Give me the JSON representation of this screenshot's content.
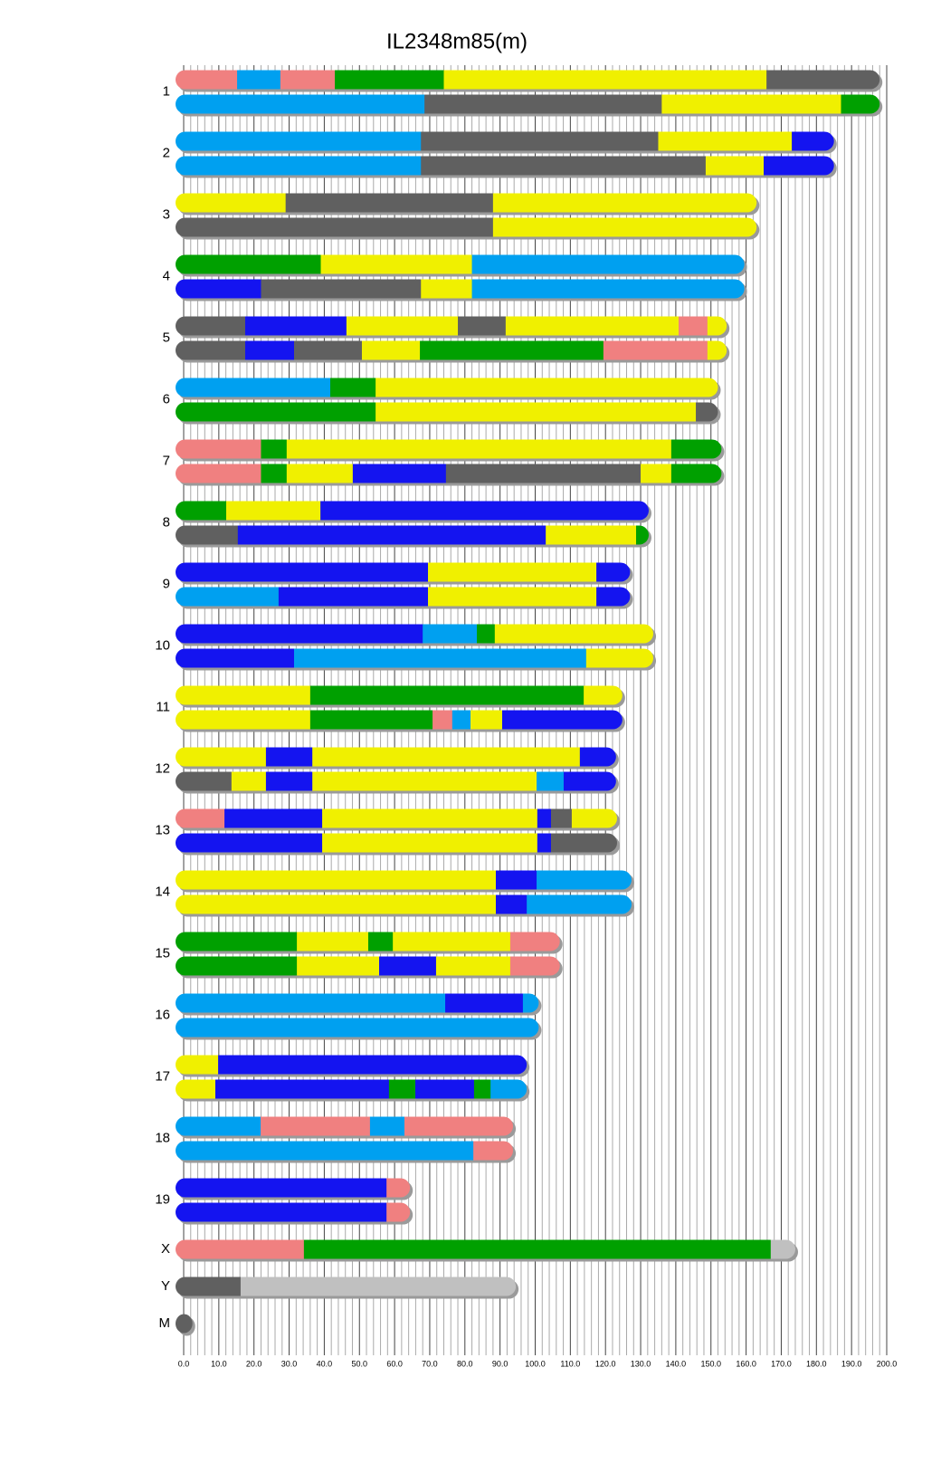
{
  "chart_data": {
    "type": "chromosome-painting",
    "title": "IL2348m85(m)",
    "xlim": [
      0,
      200
    ],
    "xticks": [
      {
        "value": 0,
        "label": "0.0"
      },
      {
        "value": 10,
        "label": "10.0"
      },
      {
        "value": 20,
        "label": "20.0"
      },
      {
        "value": 30,
        "label": "30.0"
      },
      {
        "value": 40,
        "label": "40.0"
      },
      {
        "value": 50,
        "label": "50.0"
      },
      {
        "value": 60,
        "label": "60.0"
      },
      {
        "value": 70,
        "label": "70.0"
      },
      {
        "value": 80,
        "label": "80.0"
      },
      {
        "value": 90,
        "label": "90.0"
      },
      {
        "value": 100,
        "label": "100.0"
      },
      {
        "value": 110,
        "label": "110.0"
      },
      {
        "value": 120,
        "label": "120.0"
      },
      {
        "value": 130,
        "label": "130.0"
      },
      {
        "value": 140,
        "label": "140.0"
      },
      {
        "value": 150,
        "label": "150.0"
      },
      {
        "value": 160,
        "label": "160.0"
      },
      {
        "value": 170,
        "label": "170.0"
      },
      {
        "value": 180,
        "label": "180.0"
      },
      {
        "value": 190,
        "label": "190.0"
      },
      {
        "value": 200,
        "label": "200.0"
      }
    ],
    "grid": true,
    "chromosomes": [
      {
        "name": "1",
        "haplotypes": [
          [
            [
              0,
              15.2,
              "#f08080"
            ],
            [
              15.2,
              27.5,
              "#00a0f0"
            ],
            [
              27.5,
              43,
              "#f08080"
            ],
            [
              43,
              74,
              "#00a000"
            ],
            [
              74,
              165.8,
              "#f0f000"
            ],
            [
              165.8,
              198,
              "#606060"
            ]
          ],
          [
            [
              0,
              68.5,
              "#00a0f0"
            ],
            [
              68.5,
              136,
              "#606060"
            ],
            [
              136,
              187,
              "#f0f000"
            ],
            [
              187,
              198,
              "#00a000"
            ]
          ]
        ]
      },
      {
        "name": "2",
        "haplotypes": [
          [
            [
              0,
              67.5,
              "#00a0f0"
            ],
            [
              67.5,
              135,
              "#606060"
            ],
            [
              135,
              173,
              "#f0f000"
            ],
            [
              173,
              185,
              "#1414f0"
            ]
          ],
          [
            [
              0,
              67.5,
              "#00a0f0"
            ],
            [
              67.5,
              148.5,
              "#606060"
            ],
            [
              148.5,
              165,
              "#f0f000"
            ],
            [
              165,
              185,
              "#1414f0"
            ]
          ]
        ]
      },
      {
        "name": "3",
        "haplotypes": [
          [
            [
              0,
              29,
              "#f0f000"
            ],
            [
              29,
              88,
              "#606060"
            ],
            [
              88,
              163,
              "#f0f000"
            ]
          ],
          [
            [
              0,
              88,
              "#606060"
            ],
            [
              88,
              163,
              "#f0f000"
            ]
          ]
        ]
      },
      {
        "name": "4",
        "haplotypes": [
          [
            [
              0,
              39,
              "#00a000"
            ],
            [
              39,
              82,
              "#f0f000"
            ],
            [
              82,
              159.5,
              "#00a0f0"
            ]
          ],
          [
            [
              0,
              22,
              "#1414f0"
            ],
            [
              22,
              67.5,
              "#606060"
            ],
            [
              67.5,
              82,
              "#f0f000"
            ],
            [
              82,
              159.5,
              "#00a0f0"
            ]
          ]
        ]
      },
      {
        "name": "5",
        "haplotypes": [
          [
            [
              0,
              17.5,
              "#606060"
            ],
            [
              17.5,
              46.3,
              "#1414f0"
            ],
            [
              46.3,
              78,
              "#f0f000"
            ],
            [
              78,
              91.6,
              "#606060"
            ],
            [
              91.6,
              140.8,
              "#f0f000"
            ],
            [
              140.8,
              149,
              "#f08080"
            ],
            [
              149,
              154.5,
              "#f0f000"
            ]
          ],
          [
            [
              0,
              17.5,
              "#606060"
            ],
            [
              17.5,
              31.4,
              "#1414f0"
            ],
            [
              31.4,
              50.7,
              "#606060"
            ],
            [
              50.7,
              67.2,
              "#f0f000"
            ],
            [
              67.2,
              119.4,
              "#00a000"
            ],
            [
              119.4,
              149,
              "#f08080"
            ],
            [
              149,
              154.5,
              "#f0f000"
            ]
          ]
        ]
      },
      {
        "name": "6",
        "haplotypes": [
          [
            [
              0,
              41.7,
              "#00a0f0"
            ],
            [
              41.7,
              54.6,
              "#00a000"
            ],
            [
              54.6,
              152,
              "#f0f000"
            ]
          ],
          [
            [
              0,
              54.6,
              "#00a000"
            ],
            [
              54.6,
              145.7,
              "#f0f000"
            ],
            [
              145.7,
              152,
              "#606060"
            ]
          ]
        ]
      },
      {
        "name": "7",
        "haplotypes": [
          [
            [
              0,
              22,
              "#f08080"
            ],
            [
              22,
              29.3,
              "#00a000"
            ],
            [
              29.3,
              138.7,
              "#f0f000"
            ],
            [
              138.7,
              153,
              "#00a000"
            ]
          ],
          [
            [
              0,
              22,
              "#f08080"
            ],
            [
              22,
              29.3,
              "#00a000"
            ],
            [
              29.3,
              48.1,
              "#f0f000"
            ],
            [
              48.1,
              74.6,
              "#1414f0"
            ],
            [
              74.6,
              130,
              "#606060"
            ],
            [
              130,
              138.7,
              "#f0f000"
            ],
            [
              138.7,
              153,
              "#00a000"
            ]
          ]
        ]
      },
      {
        "name": "8",
        "haplotypes": [
          [
            [
              0,
              12.1,
              "#00a000"
            ],
            [
              12.1,
              38.9,
              "#f0f000"
            ],
            [
              38.9,
              132.3,
              "#1414f0"
            ]
          ],
          [
            [
              0,
              15.4,
              "#606060"
            ],
            [
              15.4,
              103,
              "#1414f0"
            ],
            [
              103,
              128.7,
              "#f0f000"
            ],
            [
              128.7,
              132.3,
              "#00a000"
            ]
          ]
        ]
      },
      {
        "name": "9",
        "haplotypes": [
          [
            [
              0,
              69.5,
              "#1414f0"
            ],
            [
              69.5,
              117.4,
              "#f0f000"
            ],
            [
              117.4,
              127,
              "#1414f0"
            ]
          ],
          [
            [
              0,
              27,
              "#00a0f0"
            ],
            [
              27,
              69.5,
              "#1414f0"
            ],
            [
              69.5,
              117.4,
              "#f0f000"
            ],
            [
              117.4,
              127,
              "#1414f0"
            ]
          ]
        ]
      },
      {
        "name": "10",
        "haplotypes": [
          [
            [
              0,
              68,
              "#1414f0"
            ],
            [
              68,
              83.4,
              "#00a0f0"
            ],
            [
              83.4,
              88.5,
              "#00a000"
            ],
            [
              88.5,
              133.6,
              "#f0f000"
            ]
          ],
          [
            [
              0,
              31.4,
              "#1414f0"
            ],
            [
              31.4,
              114.5,
              "#00a0f0"
            ],
            [
              114.5,
              133.6,
              "#f0f000"
            ]
          ]
        ]
      },
      {
        "name": "11",
        "haplotypes": [
          [
            [
              0,
              36,
              "#f0f000"
            ],
            [
              36,
              113.8,
              "#00a000"
            ],
            [
              113.8,
              124.8,
              "#f0f000"
            ]
          ],
          [
            [
              0,
              36,
              "#f0f000"
            ],
            [
              36,
              70.8,
              "#00a000"
            ],
            [
              70.8,
              76.4,
              "#f08080"
            ],
            [
              76.4,
              81.6,
              "#00a0f0"
            ],
            [
              81.6,
              90.6,
              "#f0f000"
            ],
            [
              90.6,
              124.8,
              "#1414f0"
            ]
          ]
        ]
      },
      {
        "name": "12",
        "haplotypes": [
          [
            [
              0,
              23.4,
              "#f0f000"
            ],
            [
              23.4,
              36.6,
              "#1414f0"
            ],
            [
              36.6,
              112.7,
              "#f0f000"
            ],
            [
              112.7,
              123,
              "#1414f0"
            ]
          ],
          [
            [
              0,
              13.6,
              "#606060"
            ],
            [
              13.6,
              23.4,
              "#f0f000"
            ],
            [
              23.4,
              36.6,
              "#1414f0"
            ],
            [
              36.6,
              100.4,
              "#f0f000"
            ],
            [
              100.4,
              108.1,
              "#00a0f0"
            ],
            [
              108.1,
              123,
              "#1414f0"
            ]
          ]
        ]
      },
      {
        "name": "13",
        "haplotypes": [
          [
            [
              0,
              11.6,
              "#f08080"
            ],
            [
              11.6,
              39.4,
              "#1414f0"
            ],
            [
              39.4,
              100.6,
              "#f0f000"
            ],
            [
              100.6,
              104.5,
              "#1414f0"
            ],
            [
              104.5,
              110.4,
              "#606060"
            ],
            [
              110.4,
              123.3,
              "#f0f000"
            ]
          ],
          [
            [
              0,
              39.4,
              "#1414f0"
            ],
            [
              39.4,
              100.6,
              "#f0f000"
            ],
            [
              100.6,
              104.5,
              "#1414f0"
            ],
            [
              104.5,
              123.3,
              "#606060"
            ]
          ]
        ]
      },
      {
        "name": "14",
        "haplotypes": [
          [
            [
              0,
              88.8,
              "#f0f000"
            ],
            [
              88.8,
              100.4,
              "#1414f0"
            ],
            [
              100.4,
              127.4,
              "#00a0f0"
            ]
          ],
          [
            [
              0,
              88.8,
              "#f0f000"
            ],
            [
              88.8,
              97.6,
              "#1414f0"
            ],
            [
              97.6,
              127.4,
              "#00a0f0"
            ]
          ]
        ]
      },
      {
        "name": "15",
        "haplotypes": [
          [
            [
              0,
              32.2,
              "#00a000"
            ],
            [
              32.2,
              52.5,
              "#f0f000"
            ],
            [
              52.5,
              59.5,
              "#00a000"
            ],
            [
              59.5,
              92.9,
              "#f0f000"
            ],
            [
              92.9,
              107,
              "#f08080"
            ]
          ],
          [
            [
              0,
              32.2,
              "#00a000"
            ],
            [
              32.2,
              55.6,
              "#f0f000"
            ],
            [
              55.6,
              71.8,
              "#1414f0"
            ],
            [
              71.8,
              92.9,
              "#f0f000"
            ],
            [
              92.9,
              107,
              "#f08080"
            ]
          ]
        ]
      },
      {
        "name": "16",
        "haplotypes": [
          [
            [
              0,
              74.4,
              "#00a0f0"
            ],
            [
              74.4,
              96.5,
              "#1414f0"
            ],
            [
              96.5,
              101,
              "#00a0f0"
            ]
          ],
          [
            [
              0,
              101,
              "#00a0f0"
            ]
          ]
        ]
      },
      {
        "name": "17",
        "haplotypes": [
          [
            [
              0,
              9.8,
              "#f0f000"
            ],
            [
              9.8,
              97.6,
              "#1414f0"
            ]
          ],
          [
            [
              0,
              9,
              "#f0f000"
            ],
            [
              9,
              58.4,
              "#1414f0"
            ],
            [
              58.4,
              65.9,
              "#00a000"
            ],
            [
              65.9,
              82.6,
              "#1414f0"
            ],
            [
              82.6,
              87.3,
              "#00a000"
            ],
            [
              87.3,
              97.6,
              "#00a0f0"
            ]
          ]
        ]
      },
      {
        "name": "18",
        "haplotypes": [
          [
            [
              0,
              21.9,
              "#00a0f0"
            ],
            [
              21.9,
              53,
              "#f08080"
            ],
            [
              53,
              62.8,
              "#00a0f0"
            ],
            [
              62.8,
              93.7,
              "#f08080"
            ]
          ],
          [
            [
              0,
              82.4,
              "#00a0f0"
            ],
            [
              82.4,
              93.7,
              "#f08080"
            ]
          ]
        ]
      },
      {
        "name": "19",
        "haplotypes": [
          [
            [
              0,
              57.7,
              "#1414f0"
            ],
            [
              57.7,
              64.4,
              "#f08080"
            ]
          ],
          [
            [
              0,
              57.7,
              "#1414f0"
            ],
            [
              57.7,
              64.4,
              "#f08080"
            ]
          ]
        ]
      },
      {
        "name": "X",
        "haplotypes": [
          [
            [
              0,
              34.2,
              "#f08080"
            ],
            [
              34.2,
              167,
              "#00a000"
            ],
            [
              167,
              174,
              "#c0c0c0"
            ]
          ]
        ]
      },
      {
        "name": "Y",
        "haplotypes": [
          [
            [
              0,
              16.2,
              "#606060"
            ],
            [
              16.2,
              94.5,
              "#c0c0c0"
            ]
          ]
        ]
      },
      {
        "name": "M",
        "haplotypes": [
          [
            [
              0,
              2.5,
              "#606060"
            ]
          ]
        ]
      }
    ]
  }
}
